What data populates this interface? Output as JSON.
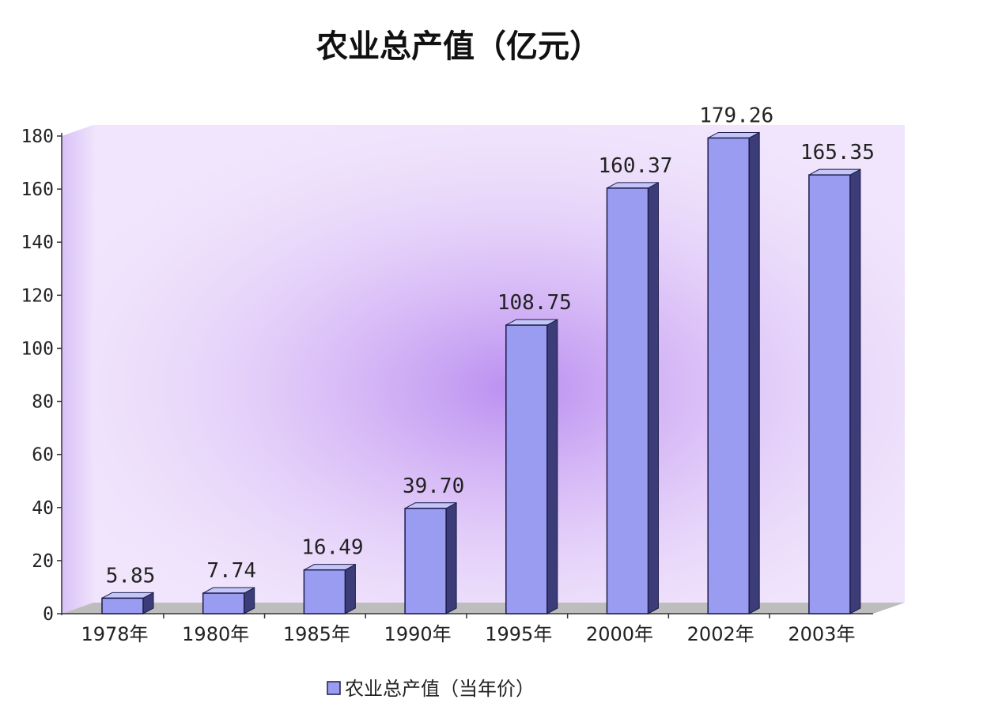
{
  "chart_data": {
    "type": "bar",
    "title": "农业总产值（亿元）",
    "categories": [
      "1978年",
      "1980年",
      "1985年",
      "1990年",
      "1995年",
      "2000年",
      "2002年",
      "2003年"
    ],
    "series": [
      {
        "name": "农业总产值（当年价）",
        "values": [
          5.85,
          7.74,
          16.49,
          39.7,
          108.75,
          160.37,
          179.26,
          165.35
        ],
        "labels": [
          "5.85",
          "7.74",
          "16.49",
          "39.70",
          "108.75",
          "160.37",
          "179.26",
          "165.35"
        ]
      }
    ],
    "ylim": [
      0,
      180
    ],
    "yticks": [
      0,
      20,
      40,
      60,
      80,
      100,
      120,
      140,
      160,
      180
    ],
    "xlabel": "",
    "ylabel": "",
    "grid": false,
    "legend": "bottom",
    "style": "3d-bar"
  },
  "colors": {
    "bar_front": "#9a9cf2",
    "bar_side": "#3c3c78",
    "bar_top": "#c4c6fa",
    "bar_edge": "#1c1c48",
    "wall_light": "#f0e4fc",
    "wall_glow": "#b98cf0",
    "floor": "#bdbdbd"
  }
}
